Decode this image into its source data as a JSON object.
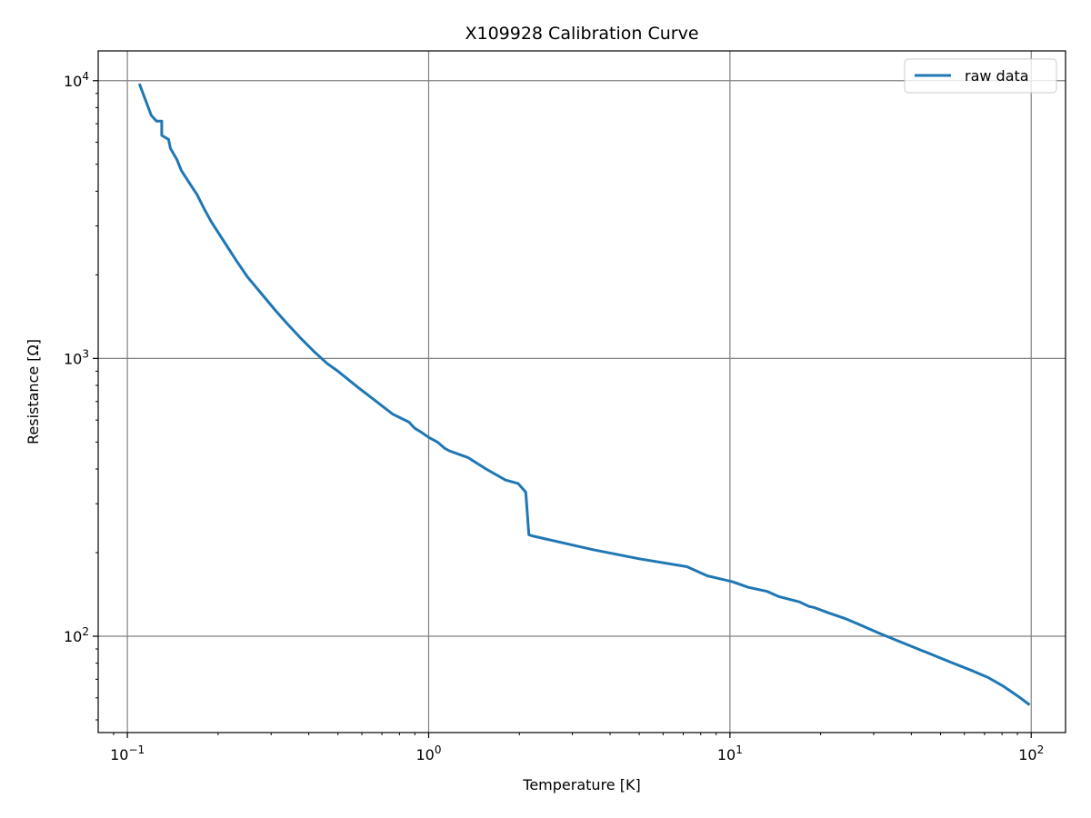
{
  "chart_data": {
    "type": "line",
    "title": "X109928 Calibration Curve",
    "xlabel": "Temperature [K]",
    "ylabel": "Resistance [Ω]",
    "xscale": "log",
    "yscale": "log",
    "xlim": [
      0.08,
      130
    ],
    "ylim": [
      45,
      12800
    ],
    "grid": true,
    "legend_position": "top-right",
    "x_ticks": [
      {
        "value": 0.1,
        "base": "10",
        "exp": "−1"
      },
      {
        "value": 1,
        "base": "10",
        "exp": "0"
      },
      {
        "value": 10,
        "base": "10",
        "exp": "1"
      },
      {
        "value": 100,
        "base": "10",
        "exp": "2"
      }
    ],
    "y_ticks": [
      {
        "value": 100,
        "base": "10",
        "exp": "2"
      },
      {
        "value": 1000,
        "base": "10",
        "exp": "3"
      },
      {
        "value": 10000,
        "base": "10",
        "exp": "4"
      }
    ],
    "colors": {
      "series": "#1f77b4",
      "grid": "#808080"
    },
    "series": [
      {
        "name": "raw data",
        "x": [
          0.11,
          0.12,
          0.125,
          0.13,
          0.13,
          0.137,
          0.139,
          0.146,
          0.151,
          0.157,
          0.166,
          0.17,
          0.18,
          0.19,
          0.21,
          0.23,
          0.25,
          0.28,
          0.31,
          0.34,
          0.38,
          0.42,
          0.46,
          0.5,
          0.58,
          0.67,
          0.76,
          0.86,
          0.9,
          0.94,
          1.0,
          1.07,
          1.13,
          1.17,
          1.35,
          1.55,
          1.8,
          1.98,
          2.1,
          2.15,
          2.2,
          3.5,
          5.0,
          7.2,
          8.4,
          10.2,
          11.5,
          13.3,
          14.5,
          17.0,
          18.3,
          19.0,
          21.4,
          24.0,
          26.5,
          31.0,
          35.5,
          41.0,
          48.0,
          55.0,
          64.0,
          72.0,
          81.0,
          90.0,
          98.0
        ],
        "y": [
          9650,
          7500,
          7150,
          7150,
          6350,
          6150,
          5700,
          5200,
          4750,
          4450,
          4050,
          3900,
          3450,
          3100,
          2620,
          2250,
          1970,
          1700,
          1490,
          1330,
          1170,
          1050,
          960,
          900,
          790,
          700,
          630,
          590,
          560,
          545,
          520,
          500,
          475,
          465,
          440,
          400,
          365,
          355,
          330,
          232,
          230,
          205,
          190,
          178,
          165,
          157,
          150,
          145,
          139,
          133,
          128,
          127,
          121,
          116,
          111,
          103,
          97,
          91,
          85,
          80,
          75,
          71,
          66,
          61,
          57
        ]
      }
    ]
  }
}
